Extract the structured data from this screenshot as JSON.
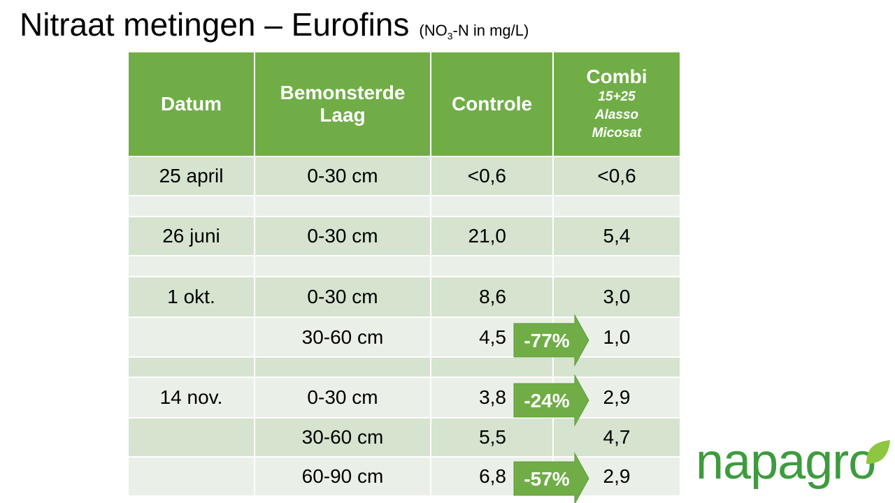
{
  "header": {
    "title": "Nitraat metingen – Eurofins",
    "subtitle": [
      "(NO",
      "3",
      "-N in mg/L)"
    ]
  },
  "table": {
    "columns": [
      "Datum",
      "Bemonsterde Laag",
      "Controle",
      "Combi"
    ],
    "combi_details": [
      "15+25",
      "Alasso",
      "Micosat"
    ],
    "rows": [
      {
        "date": "25 april",
        "layer": "0-30 cm",
        "controle": "<0,6",
        "combi": "<0,6"
      },
      {
        "date": "26 juni",
        "layer": "0-30 cm",
        "controle": "21,0",
        "combi": "5,4"
      },
      {
        "date": "1 okt.",
        "layer": "0-30 cm",
        "controle": "8,6",
        "combi": "3,0"
      },
      {
        "layer": "30-60 cm",
        "controle": "4,5",
        "combi": "1,0"
      },
      {
        "date": "14 nov.",
        "layer": "0-30 cm",
        "controle": "3,8",
        "combi": "2,9"
      },
      {
        "layer": "30-60 cm",
        "controle": "5,5",
        "combi": "4,7"
      },
      {
        "layer": "60-90 cm",
        "controle": "6,8",
        "combi": "2,9"
      }
    ]
  },
  "reductions": [
    "-77%",
    "-24%",
    "-57%"
  ],
  "logo": "napagro"
}
